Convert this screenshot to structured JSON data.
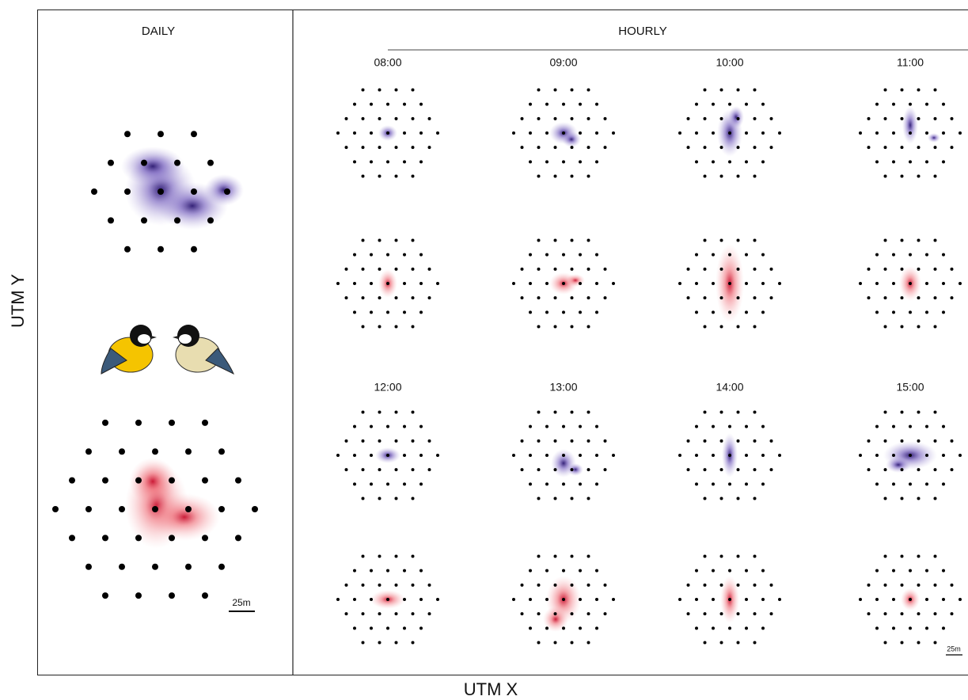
{
  "panels": {
    "daily": "DAILY",
    "hourly": "HOURLY"
  },
  "hours": [
    "08:00",
    "09:00",
    "10:00",
    "11:00",
    "12:00",
    "13:00",
    "14:00",
    "15:00"
  ],
  "axes": {
    "y": "UTM Y",
    "x": "UTM X"
  },
  "scale_bars": {
    "daily": "25m",
    "hourly": "25m"
  }
}
